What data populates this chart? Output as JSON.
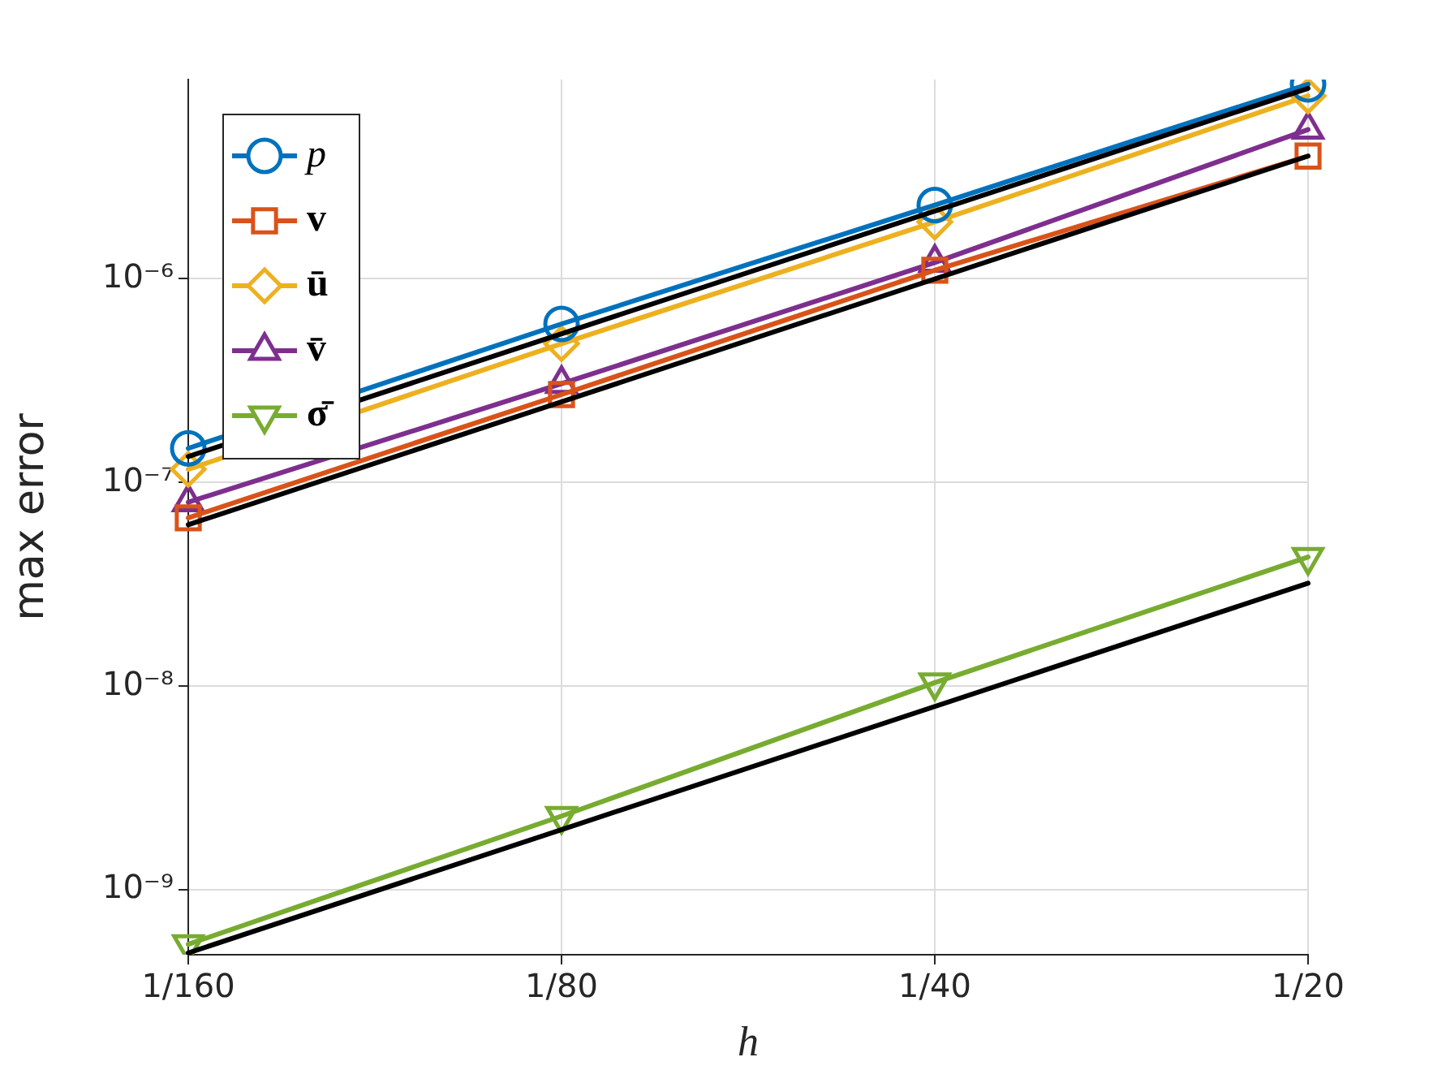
{
  "chart_data": {
    "type": "line",
    "xlabel": "h",
    "ylabel": "max error",
    "log": "xy",
    "grid": true,
    "legend": "top left",
    "line_style": "solid",
    "categories": [
      "1/160",
      "1/80",
      "1/40",
      "1/20"
    ],
    "ylim": [
      4.8e-10,
      9.5e-06
    ],
    "yticks": [
      {
        "value": 1e-09,
        "label": "10⁻⁹"
      },
      {
        "value": 1e-08,
        "label": "10⁻⁸"
      },
      {
        "value": 1e-07,
        "label": "10⁻⁷"
      },
      {
        "value": 1e-06,
        "label": "10⁻⁶"
      }
    ],
    "series": [
      {
        "type": "line",
        "color": "#000000",
        "marker": "none",
        "x": [
          "1/160",
          "1/20"
        ],
        "values": [
          1.34e-07,
          8.6e-06
        ]
      },
      {
        "type": "line",
        "color": "#000000",
        "marker": "none",
        "x": [
          "1/160",
          "1/20"
        ],
        "values": [
          6.2e-08,
          4e-06
        ]
      },
      {
        "type": "line",
        "color": "#000000",
        "marker": "none",
        "x": [
          "1/160",
          "1/20"
        ],
        "values": [
          4.9e-10,
          3.2e-08
        ]
      },
      {
        "name": "p",
        "color": "#0072bd",
        "marker": "circle",
        "values": [
          1.47e-07,
          6e-07,
          2.3e-06,
          9e-06
        ]
      },
      {
        "name": "v",
        "color": "#d95319",
        "marker": "square",
        "values": [
          6.7e-08,
          2.7e-07,
          1.1e-06,
          4e-06
        ]
      },
      {
        "name": "ū",
        "color": "#edb120",
        "marker": "diamond",
        "values": [
          1.16e-07,
          4.8e-07,
          1.9e-06,
          7.9e-06
        ]
      },
      {
        "name": "v̄",
        "color": "#7e2f8e",
        "marker": "triangle",
        "values": [
          8e-08,
          3.05e-07,
          1.2e-06,
          5.4e-06
        ]
      },
      {
        "name": "σ̄",
        "color": "#77ac30",
        "marker": "triangle-down",
        "values": [
          5.4e-10,
          2.3e-09,
          1.04e-08,
          4.3e-08
        ]
      }
    ]
  }
}
